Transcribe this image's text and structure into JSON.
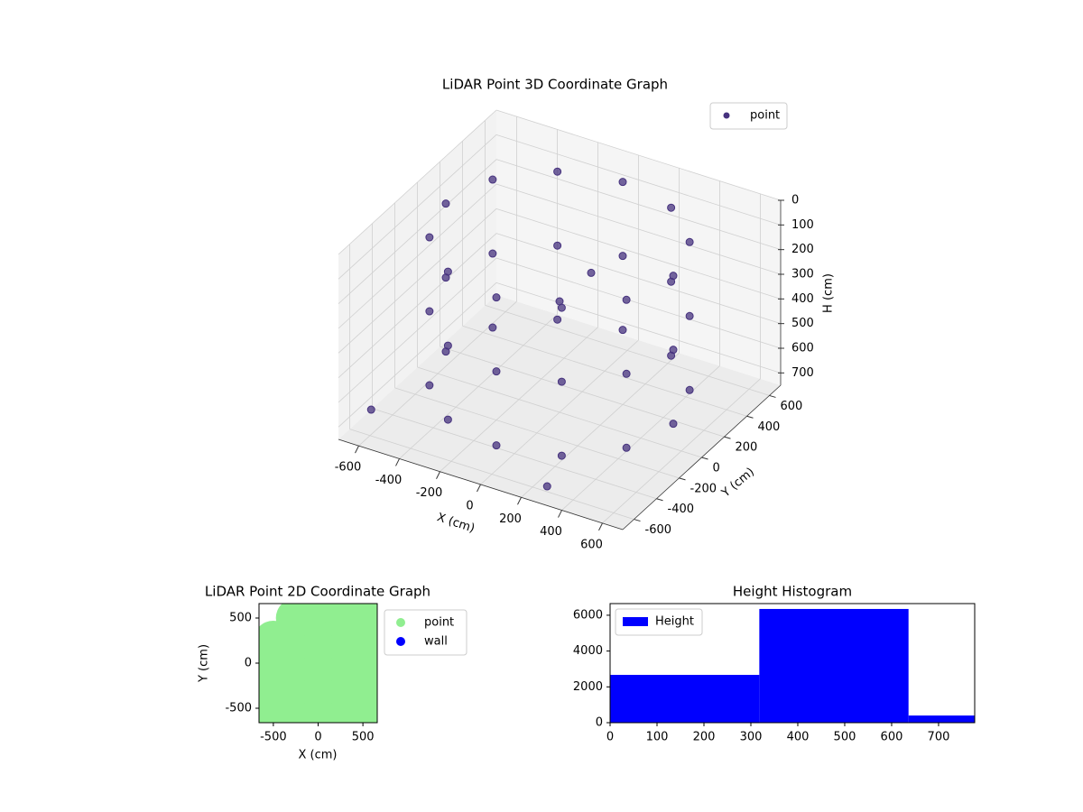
{
  "chart_data": [
    {
      "type": "scatter3d",
      "title": "LiDAR Point 3D Coordinate Graph",
      "xlabel": "X (cm)",
      "ylabel": "Y (cm)",
      "zlabel": "H (cm)",
      "xlim": [
        -700,
        700
      ],
      "ylim": [
        -700,
        700
      ],
      "zlim": [
        0,
        750
      ],
      "z_inverted": true,
      "xticks": [
        -600,
        -400,
        -200,
        0,
        200,
        400,
        600
      ],
      "yticks": [
        -600,
        -400,
        -200,
        0,
        200,
        400,
        600
      ],
      "zticks": [
        0,
        100,
        200,
        300,
        400,
        500,
        600,
        700
      ],
      "legend": "upper right",
      "grid": true,
      "series": [
        {
          "name": "point",
          "color": "#46327e",
          "x": [
            560,
            485,
            280,
            0,
            -280,
            -485,
            -560,
            -485,
            -280,
            0,
            280,
            485,
            560,
            485,
            280,
            0,
            -280,
            -485,
            -560,
            -485,
            -280,
            0,
            280,
            485,
            560,
            485,
            280,
            0,
            -280,
            -485,
            -560,
            -485,
            -280,
            0,
            280,
            485,
            -650,
            300,
            0,
            100
          ],
          "y": [
            0,
            280,
            485,
            560,
            485,
            280,
            0,
            -280,
            -485,
            -560,
            -485,
            -280,
            0,
            280,
            485,
            560,
            485,
            280,
            0,
            -280,
            -485,
            -560,
            -485,
            -280,
            0,
            280,
            485,
            560,
            485,
            280,
            0,
            -280,
            -485,
            -560,
            -485,
            -280,
            -500,
            -650,
            0,
            100
          ],
          "z": [
            50,
            50,
            50,
            50,
            50,
            50,
            50,
            50,
            50,
            50,
            50,
            50,
            350,
            350,
            350,
            350,
            350,
            350,
            350,
            350,
            350,
            350,
            350,
            350,
            650,
            650,
            650,
            650,
            650,
            650,
            650,
            650,
            650,
            650,
            650,
            650,
            700,
            700,
            300,
            200
          ]
        }
      ]
    },
    {
      "type": "scatter",
      "title": "LiDAR Point 2D Coordinate Graph",
      "xlabel": "X (cm)",
      "ylabel": "Y (cm)",
      "xlim": [
        -660,
        660
      ],
      "ylim": [
        -660,
        660
      ],
      "xticks": [
        -500,
        0,
        500
      ],
      "yticks": [
        -500,
        0,
        500
      ],
      "legend": "outside right",
      "series": [
        {
          "name": "point",
          "color": "#90ee90",
          "x": [
            -500,
            -250,
            0,
            250,
            500,
            -500,
            -250,
            0,
            250,
            500,
            -500,
            -250,
            0,
            250,
            500,
            -500,
            -250,
            0,
            250,
            500,
            -250,
            0,
            250,
            500,
            -600,
            600,
            -550,
            0,
            200,
            -100
          ],
          "y": [
            -500,
            -500,
            -500,
            -500,
            -500,
            -250,
            -250,
            -250,
            -250,
            -250,
            0,
            0,
            0,
            0,
            0,
            250,
            250,
            250,
            250,
            250,
            500,
            500,
            500,
            500,
            -100,
            -100,
            -520,
            620,
            640,
            600
          ]
        },
        {
          "name": "wall",
          "color": "#0000ff",
          "x": [],
          "y": []
        }
      ]
    },
    {
      "type": "histogram",
      "title": "Height Histogram",
      "xlim": [
        0,
        777
      ],
      "ylim": [
        0,
        6650
      ],
      "xticks": [
        0,
        100,
        200,
        300,
        400,
        500,
        600,
        700
      ],
      "yticks": [
        0,
        2000,
        4000,
        6000
      ],
      "legend": "upper left",
      "series_name": "Height",
      "color": "#0000ff",
      "bins": [
        0,
        318,
        636,
        954
      ],
      "values": [
        2670,
        6350,
        400
      ]
    }
  ]
}
